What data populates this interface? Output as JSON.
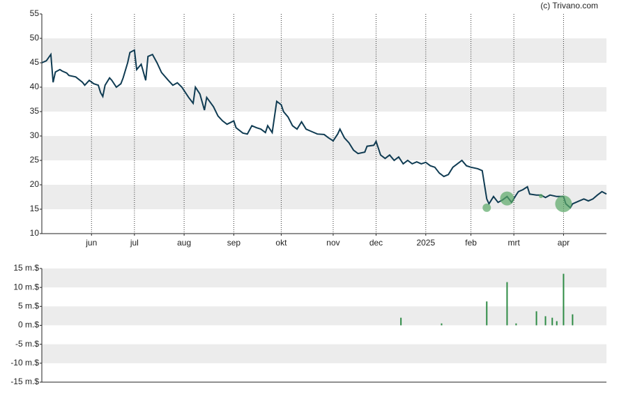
{
  "chart_data": [
    {
      "type": "line",
      "credit": "(c) Trivano.com",
      "color": "#0f3b52",
      "x": [
        0,
        2,
        4,
        5,
        6,
        8,
        9,
        11,
        12,
        15,
        18,
        19,
        21,
        23,
        25,
        26,
        27,
        28,
        30,
        31,
        33,
        35,
        36,
        38,
        39,
        41,
        42,
        44,
        46,
        47,
        49,
        51,
        53,
        56,
        58,
        60,
        62,
        65,
        67,
        68,
        70,
        72,
        73,
        76,
        78,
        80,
        82,
        85,
        86,
        89,
        91,
        93,
        95,
        97,
        99,
        100,
        102,
        104,
        106,
        107,
        109,
        111,
        113,
        115,
        117,
        119,
        122,
        125,
        127,
        129,
        131,
        132,
        134,
        136,
        138,
        140,
        143,
        144,
        147,
        148,
        150,
        152,
        154,
        156,
        158,
        160,
        162,
        164,
        166,
        168,
        170,
        172,
        174,
        176,
        178,
        180,
        182,
        184,
        186,
        188,
        190,
        193,
        195,
        197,
        198,
        200,
        202,
        204,
        206,
        208,
        210,
        211,
        213,
        215,
        216,
        219,
        221,
        223,
        225,
        228,
        231,
        232,
        234,
        235,
        238,
        240,
        242,
        244,
        246,
        248,
        250
      ],
      "values": [
        45,
        45.4,
        46.7,
        41,
        43.1,
        43.6,
        43.3,
        42.9,
        42.4,
        42.1,
        41,
        40.4,
        41.4,
        40.7,
        40.4,
        38.9,
        38.1,
        40.4,
        41.9,
        41.4,
        40,
        40.7,
        41.9,
        45,
        47.1,
        47.6,
        43.6,
        44.7,
        41.4,
        46.3,
        46.7,
        45,
        43,
        41.4,
        40.4,
        40.9,
        40,
        37.9,
        36.7,
        40,
        38.6,
        35.3,
        37.9,
        36,
        34.1,
        33.1,
        32.4,
        33.1,
        31.7,
        30.6,
        30.4,
        32.1,
        31.7,
        31.4,
        30.7,
        32.1,
        30.7,
        37.1,
        36.4,
        35,
        33.9,
        32.1,
        31.4,
        32.9,
        31.4,
        31,
        30.4,
        30.3,
        29.6,
        29,
        30.4,
        31.4,
        29.6,
        28.6,
        27.1,
        26.4,
        26.7,
        27.9,
        28.1,
        28.9,
        26.1,
        25.4,
        26.1,
        25,
        25.7,
        24.3,
        25,
        24.3,
        24.7,
        24.3,
        24.6,
        23.9,
        23.6,
        22.4,
        21.7,
        22.1,
        23.6,
        24.3,
        25,
        23.9,
        23.6,
        23.3,
        22.9,
        17.1,
        16.1,
        17.6,
        16.4,
        16.9,
        17.6,
        16.4,
        17.9,
        18.6,
        19,
        19.6,
        18.1,
        17.9,
        17.9,
        17.4,
        17.9,
        17.6,
        17.6,
        16.1,
        15.3,
        16.1,
        16.7,
        17.1,
        16.7,
        17.1,
        17.9,
        18.6,
        18.1
      ],
      "bubbles": {
        "color": "#5aa867",
        "x": [
          197,
          206,
          221,
          231
        ],
        "values": [
          15.3,
          17.2,
          17.7,
          16.1
        ],
        "sizes": [
          6,
          10,
          3,
          12
        ]
      },
      "xlim": [
        0,
        250
      ],
      "xticks": [
        {
          "value": 22,
          "label": "jun"
        },
        {
          "value": 41,
          "label": "jul"
        },
        {
          "value": 63,
          "label": "aug"
        },
        {
          "value": 85,
          "label": "sep"
        },
        {
          "value": 106,
          "label": "okt"
        },
        {
          "value": 129,
          "label": "nov"
        },
        {
          "value": 148,
          "label": "dec"
        },
        {
          "value": 170,
          "label": "2025"
        },
        {
          "value": 190,
          "label": "feb"
        },
        {
          "value": 209,
          "label": "mrt"
        },
        {
          "value": 231,
          "label": "apr"
        }
      ],
      "ylim": [
        10,
        55
      ],
      "yticks": [
        10,
        15,
        20,
        25,
        30,
        35,
        40,
        45,
        50,
        55
      ],
      "bands": true
    },
    {
      "type": "bar",
      "color": "#2e8b45",
      "x": [
        159,
        177,
        197,
        206,
        210,
        219,
        223,
        226,
        228,
        231,
        235
      ],
      "values": [
        2.0,
        0.5,
        6.3,
        11.4,
        0.5,
        3.7,
        2.4,
        2.0,
        1.1,
        13.6,
        2.9
      ],
      "xlim": [
        0,
        250
      ],
      "ylim": [
        -15,
        15
      ],
      "yticks": [
        {
          "value": -15,
          "label": "-15 m.$"
        },
        {
          "value": -10,
          "label": "-10 m.$"
        },
        {
          "value": -5,
          "label": "-5 m.$"
        },
        {
          "value": 0,
          "label": "0 m.$"
        },
        {
          "value": 5,
          "label": "5 m.$"
        },
        {
          "value": 10,
          "label": "10 m.$"
        },
        {
          "value": 15,
          "label": "15 m.$"
        }
      ],
      "bands": true
    }
  ]
}
